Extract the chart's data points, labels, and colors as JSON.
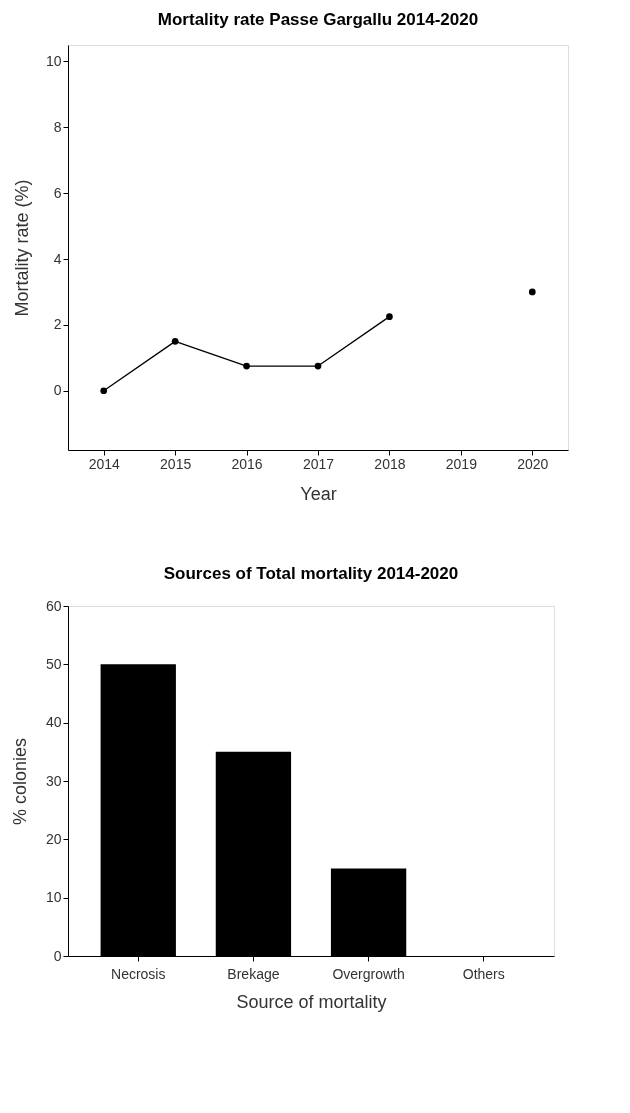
{
  "chart_data": [
    {
      "type": "line",
      "title": "Mortality rate Passe Gargallu 2014-2020",
      "xlabel": "Year",
      "ylabel": "Mortality rate (%)",
      "x": [
        2014,
        2015,
        2016,
        2017,
        2018,
        2019,
        2020
      ],
      "series": [
        {
          "color": "#000000",
          "values": [
            0,
            1.5,
            0.75,
            0.75,
            2.25,
            null,
            3.0
          ]
        }
      ],
      "xlim": [
        2013.5,
        2020.5
      ],
      "xticks": [
        2014,
        2015,
        2016,
        2017,
        2018,
        2019,
        2020
      ],
      "ylim": [
        -1.8,
        10.5
      ],
      "yticks": [
        0,
        2,
        4,
        6,
        8,
        10
      ],
      "grid": false,
      "marker": "circle",
      "line_style": "solid"
    },
    {
      "type": "bar",
      "title": "Sources of Total mortality 2014-2020",
      "xlabel": "Source of mortality",
      "ylabel": "% colonies",
      "categories": [
        "Necrosis",
        "Brekage",
        "Overgrowth",
        "Others"
      ],
      "values": [
        50,
        35,
        15,
        0
      ],
      "color": "#000000",
      "ylim": [
        0,
        60
      ],
      "yticks": [
        0,
        10,
        20,
        30,
        40,
        50,
        60
      ],
      "grid": false
    }
  ]
}
